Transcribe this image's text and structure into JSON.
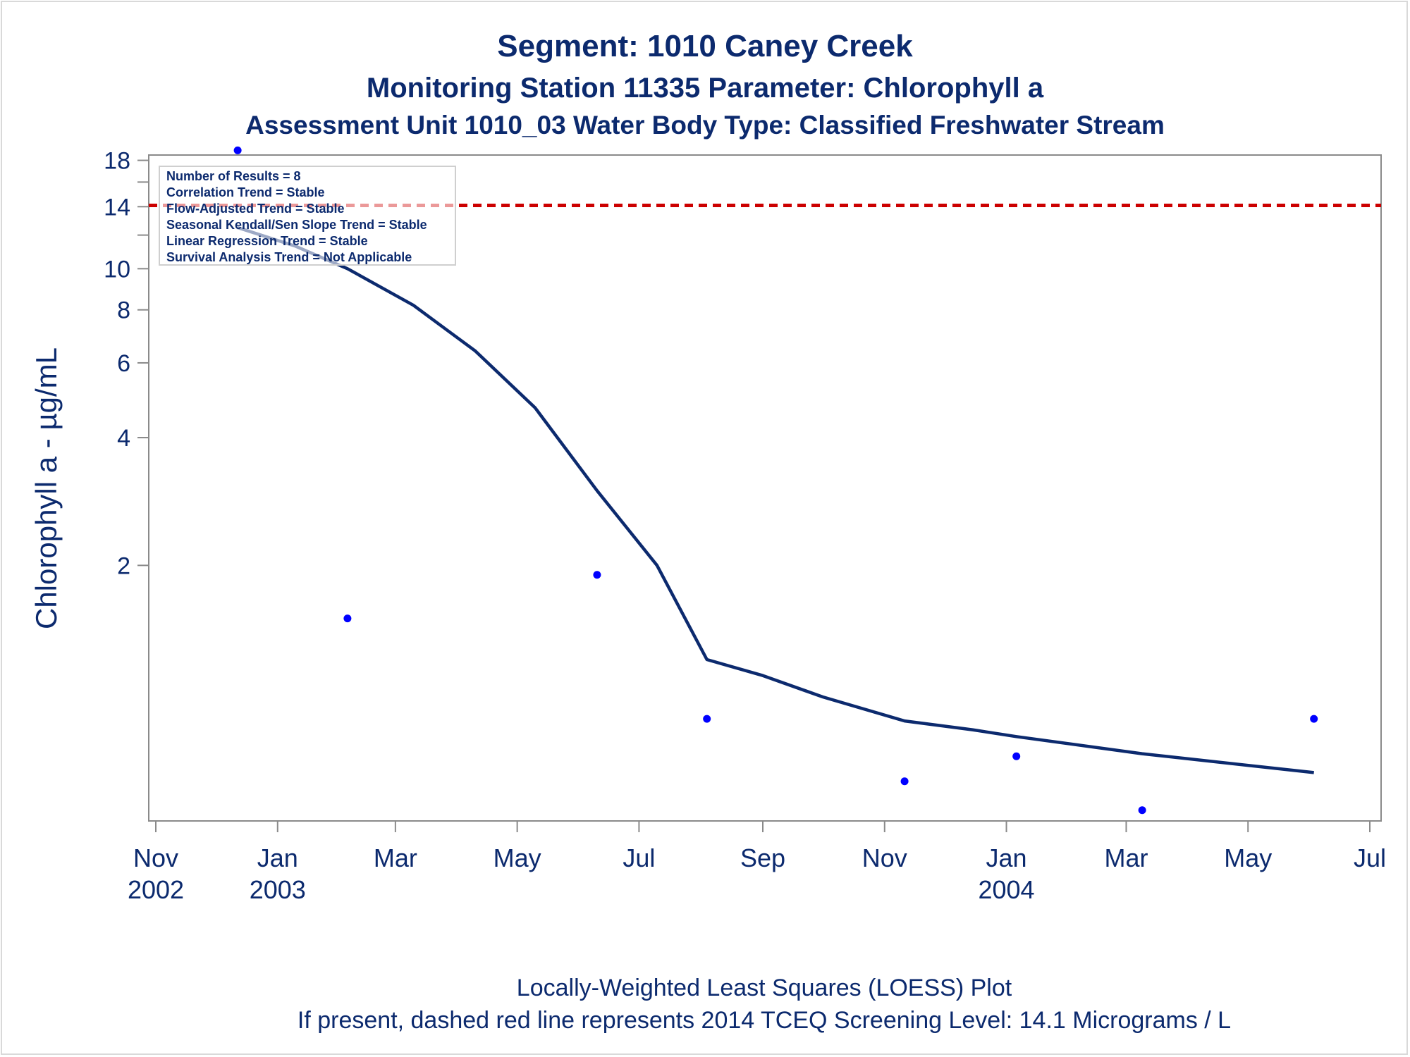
{
  "titles": {
    "line1": "Segment: 1010  Caney Creek",
    "line2": "Monitoring Station 11335 Parameter: Chlorophyll a",
    "line3": "Assessment Unit 1010_03   Water Body Type: Classified Freshwater Stream"
  },
  "footnotes": {
    "line1": "Locally-Weighted Least Squares (LOESS) Plot",
    "line2": "If present, dashed red line represents 2014 TCEQ Screening Level: 14.1 Micrograms / L"
  },
  "stats": [
    "Number of Results = 8",
    "Correlation Trend = Stable",
    "Flow-Adjusted Trend = Stable",
    "Seasonal Kendall/Sen Slope Trend = Stable",
    "Linear Regression Trend = Stable",
    "Survival Analysis Trend = Not Applicable"
  ],
  "colors": {
    "text": "#0c2a6e",
    "loess": "#0c2a6e",
    "points": "#0000ff",
    "screening": "#cc0000",
    "axis": "#8a8a8a"
  },
  "chart_data": {
    "type": "scatter",
    "ylabel": "Chlorophyll a -  µg/mL",
    "xlabel": "",
    "y_scale": "log",
    "ylim": [
      0.5,
      20
    ],
    "xlim": [
      "2002-11-01",
      "2004-07-01"
    ],
    "y_ticks": [
      {
        "value": 2,
        "label": "2"
      },
      {
        "value": 4,
        "label": "4"
      },
      {
        "value": 6,
        "label": "6"
      },
      {
        "value": 8,
        "label": "8"
      },
      {
        "value": 10,
        "label": "10"
      },
      {
        "value": 12,
        "label": ""
      },
      {
        "value": 14,
        "label": "14"
      },
      {
        "value": 16,
        "label": ""
      },
      {
        "value": 18,
        "label": "18"
      }
    ],
    "x_ticks": [
      {
        "date": "2002-11-01",
        "label": "Nov",
        "year": "2002"
      },
      {
        "date": "2003-01-01",
        "label": "Jan",
        "year": "2003"
      },
      {
        "date": "2003-03-01",
        "label": "Mar",
        "year": ""
      },
      {
        "date": "2003-05-01",
        "label": "May",
        "year": ""
      },
      {
        "date": "2003-07-01",
        "label": "Jul",
        "year": ""
      },
      {
        "date": "2003-09-01",
        "label": "Sep",
        "year": ""
      },
      {
        "date": "2003-11-01",
        "label": "Nov",
        "year": ""
      },
      {
        "date": "2004-01-01",
        "label": "Jan",
        "year": "2004"
      },
      {
        "date": "2004-03-01",
        "label": "Mar",
        "year": ""
      },
      {
        "date": "2004-05-01",
        "label": "May",
        "year": ""
      },
      {
        "date": "2004-07-01",
        "label": "Jul",
        "year": ""
      }
    ],
    "points": [
      {
        "date": "2002-12-12",
        "value": 19.0
      },
      {
        "date": "2003-02-05",
        "value": 1.5
      },
      {
        "date": "2003-06-10",
        "value": 1.9
      },
      {
        "date": "2003-08-04",
        "value": 0.87
      },
      {
        "date": "2003-11-11",
        "value": 0.62
      },
      {
        "date": "2004-01-06",
        "value": 0.71
      },
      {
        "date": "2004-03-09",
        "value": 0.53
      },
      {
        "date": "2004-06-03",
        "value": 0.87
      }
    ],
    "loess": [
      {
        "date": "2002-12-12",
        "value": 12.5
      },
      {
        "date": "2003-01-10",
        "value": 11.3
      },
      {
        "date": "2003-02-05",
        "value": 10.0
      },
      {
        "date": "2003-03-10",
        "value": 8.2
      },
      {
        "date": "2003-04-10",
        "value": 6.4
      },
      {
        "date": "2003-05-10",
        "value": 4.7
      },
      {
        "date": "2003-06-10",
        "value": 3.0
      },
      {
        "date": "2003-07-10",
        "value": 2.0
      },
      {
        "date": "2003-08-04",
        "value": 1.2
      },
      {
        "date": "2003-09-01",
        "value": 1.1
      },
      {
        "date": "2003-10-01",
        "value": 0.98
      },
      {
        "date": "2003-11-11",
        "value": 0.86
      },
      {
        "date": "2003-12-15",
        "value": 0.82
      },
      {
        "date": "2004-01-06",
        "value": 0.79
      },
      {
        "date": "2004-03-09",
        "value": 0.72
      },
      {
        "date": "2004-06-03",
        "value": 0.65
      }
    ],
    "screening_level": 14.1
  }
}
